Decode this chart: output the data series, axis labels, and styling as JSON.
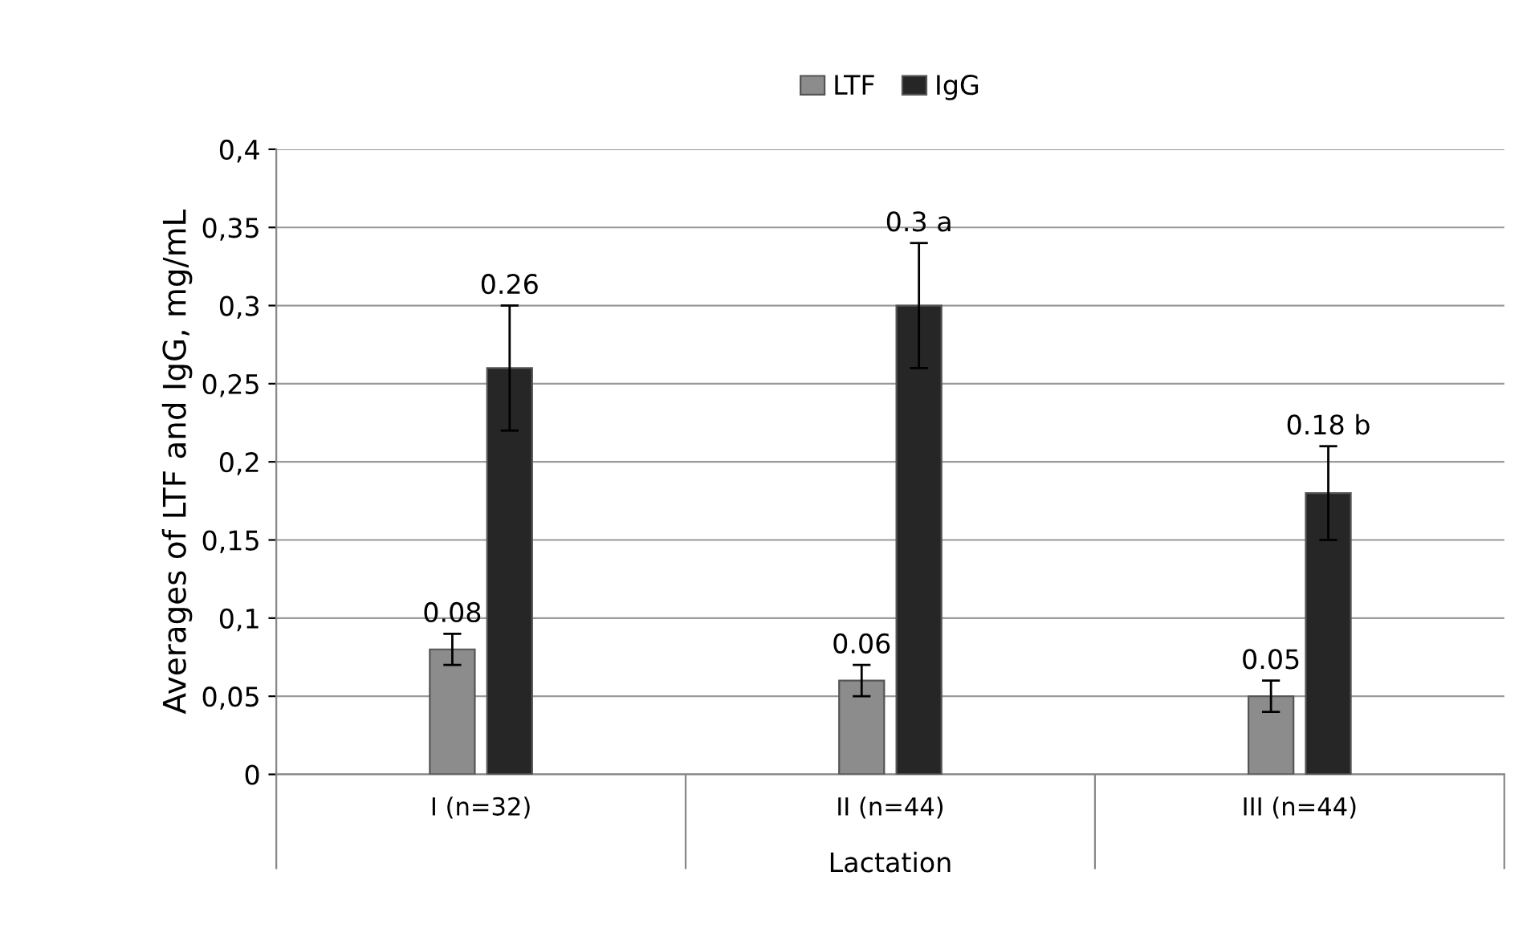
{
  "chart_data": {
    "type": "bar",
    "xlabel": "Lactation",
    "ylabel": "Averages of LTF and IgG, mg/mL",
    "categories": [
      "I (n=32)",
      "II (n=44)",
      "III (n=44)"
    ],
    "series": [
      {
        "name": "LTF",
        "color": "#8c8c8c",
        "values": [
          0.08,
          0.06,
          0.05
        ],
        "errors": [
          0.01,
          0.01,
          0.01
        ],
        "value_labels": [
          "0.08",
          "0.06",
          "0.05"
        ]
      },
      {
        "name": "IgG",
        "color": "#262626",
        "values": [
          0.26,
          0.3,
          0.18
        ],
        "errors": [
          0.04,
          0.04,
          0.03
        ],
        "value_labels": [
          "0.26",
          "0.3 a",
          "0.18 b"
        ]
      }
    ],
    "ylim": [
      0,
      0.4
    ],
    "yticks": [
      0,
      {
        "value": 0.05,
        "label": "0,05"
      },
      {
        "value": 0.1,
        "label": "0,1"
      },
      {
        "value": 0.15,
        "label": "0,15"
      },
      {
        "value": 0.2,
        "label": "0,2"
      },
      {
        "value": 0.25,
        "label": "0,25"
      },
      {
        "value": 0.3,
        "label": "0,3"
      },
      {
        "value": 0.35,
        "label": "0,35"
      },
      {
        "value": 0.4,
        "label": "0,4"
      }
    ],
    "grid": "y",
    "legend": "top"
  }
}
